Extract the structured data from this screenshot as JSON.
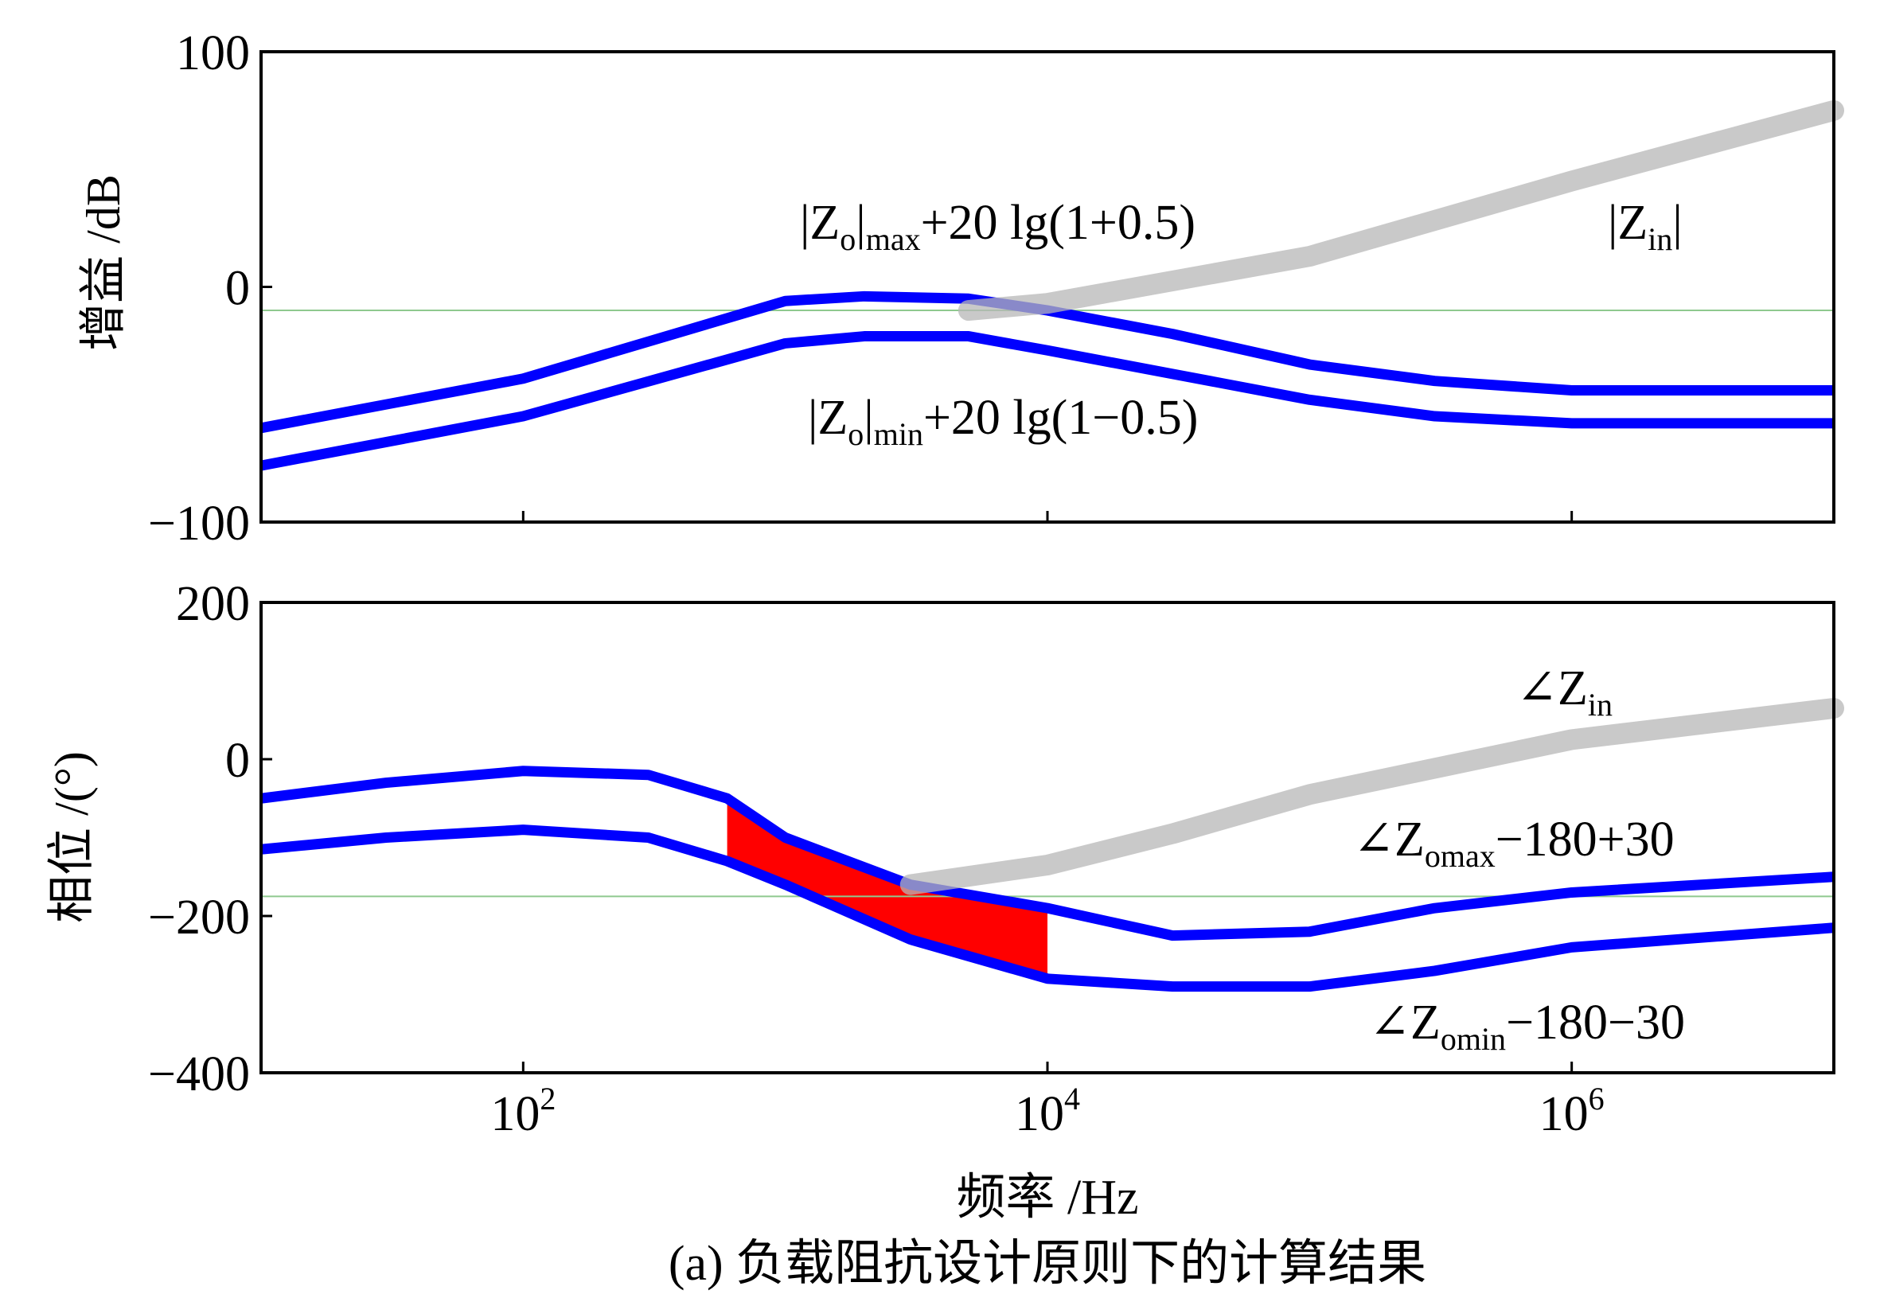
{
  "chart_data": [
    {
      "type": "line",
      "xscale": "log",
      "xlim": [
        10,
        10000000
      ],
      "ylim": [
        -100,
        100
      ],
      "yticks": [
        -100,
        0,
        100
      ],
      "ylabel": "增益 /dB",
      "reference_line": {
        "y": -10,
        "color": "#8fc98f"
      },
      "series": [
        {
          "name": "|Zo|max+20 lg(1+0.5)",
          "color": "#0000ff",
          "x": [
            10,
            100,
            1000,
            2000,
            5000,
            10000,
            30000,
            100000,
            300000,
            1000000,
            10000000
          ],
          "values": [
            -60,
            -39,
            -6,
            -4,
            -5,
            -10,
            -20,
            -33,
            -40,
            -44,
            -44
          ]
        },
        {
          "name": "|Zo|min+20 lg(1−0.5)",
          "color": "#0000ff",
          "x": [
            10,
            100,
            1000,
            2000,
            5000,
            10000,
            30000,
            100000,
            300000,
            1000000,
            10000000
          ],
          "values": [
            -76,
            -55,
            -24,
            -21,
            -21,
            -27,
            -37,
            -48,
            -55,
            -58,
            -58
          ]
        },
        {
          "name": "|Zin|",
          "color": "#b7b7b7",
          "style": "band",
          "x": [
            5000,
            10000,
            100000,
            1000000,
            10000000
          ],
          "values": [
            -10,
            -7,
            13,
            45,
            75
          ]
        }
      ],
      "annotations": [
        {
          "base": "|Z",
          "sub1": "o",
          "mid": "|",
          "sub2": "max",
          "tail": "+20 lg(1+0.5)"
        },
        {
          "base": "|Z",
          "sub1": "o",
          "mid": "|",
          "sub2": "min",
          "tail": "+20 lg(1−0.5)"
        },
        {
          "base": "|Z",
          "sub1": "in",
          "mid": "|",
          "sub2": "",
          "tail": ""
        }
      ]
    },
    {
      "type": "line",
      "xscale": "log",
      "xlim": [
        10,
        10000000
      ],
      "ylim": [
        -400,
        200
      ],
      "yticks": [
        -400,
        -200,
        0,
        200
      ],
      "xticks": [
        {
          "value": 100,
          "base": "10",
          "exp": "2"
        },
        {
          "value": 10000,
          "base": "10",
          "exp": "4"
        },
        {
          "value": 1000000,
          "base": "10",
          "exp": "6"
        }
      ],
      "xlabel": "频率 /Hz",
      "ylabel": "相位 /(°)",
      "reference_line": {
        "y": -175,
        "color": "#8fc98f"
      },
      "shaded_region": {
        "x_from": 600,
        "x_to": 10000,
        "color": "#ff0000"
      },
      "series": [
        {
          "name": "∠Zomax−180+30",
          "color": "#0000ff",
          "x": [
            10,
            30,
            100,
            300,
            600,
            1000,
            3000,
            10000,
            30000,
            100000,
            300000,
            1000000,
            10000000
          ],
          "values": [
            -50,
            -30,
            -15,
            -20,
            -50,
            -100,
            -160,
            -190,
            -225,
            -220,
            -190,
            -170,
            -150
          ]
        },
        {
          "name": "∠Zomin−180−30",
          "color": "#0000ff",
          "x": [
            10,
            30,
            100,
            300,
            600,
            1000,
            3000,
            10000,
            30000,
            100000,
            300000,
            1000000,
            10000000
          ],
          "values": [
            -115,
            -100,
            -90,
            -100,
            -130,
            -160,
            -230,
            -280,
            -290,
            -290,
            -270,
            -240,
            -215
          ]
        },
        {
          "name": "∠Zin",
          "color": "#b7b7b7",
          "style": "band",
          "x": [
            3000,
            10000,
            30000,
            100000,
            1000000,
            10000000
          ],
          "values": [
            -160,
            -135,
            -95,
            -45,
            25,
            65
          ]
        }
      ],
      "annotations": [
        {
          "base": "∠Z",
          "sub": "in",
          "tail": ""
        },
        {
          "base": "∠Z",
          "sub": "omax",
          "tail": "−180+30"
        },
        {
          "base": "∠Z",
          "sub": "omin",
          "tail": "−180−30"
        }
      ]
    }
  ],
  "caption": "(a) 负载阻抗设计原则下的计算结果"
}
